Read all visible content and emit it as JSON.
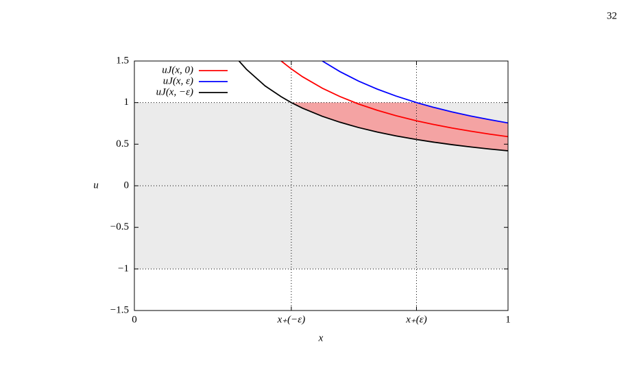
{
  "page_number": "32",
  "chart_data": {
    "type": "line",
    "x_label": "x",
    "y_label": "u",
    "x": [
      0.28,
      0.3,
      0.35,
      0.393,
      0.42,
      0.45,
      0.503,
      0.55,
      0.6,
      0.65,
      0.7,
      0.755,
      0.8,
      0.85,
      0.9,
      0.95,
      1
    ],
    "series": [
      {
        "name": "uJ(x, 0)",
        "color": "#ff0000",
        "values": [
          null,
          null,
          null,
          1.5,
          1.405,
          1.311,
          1.173,
          1.073,
          0.983,
          0.908,
          0.843,
          0.781,
          0.738,
          0.694,
          0.656,
          0.621,
          0.59
        ]
      },
      {
        "name": "uJ(x, ε)",
        "color": "#0000ff",
        "values": [
          null,
          null,
          null,
          null,
          null,
          null,
          1.5,
          1.373,
          1.258,
          1.162,
          1.079,
          1.0,
          0.944,
          0.888,
          0.839,
          0.795,
          0.755
        ]
      },
      {
        "name": "uJ(x, −ε)",
        "color": "#000000",
        "values": [
          1.5,
          1.4,
          1.2,
          1.07,
          1.0,
          0.933,
          0.835,
          0.764,
          0.7,
          0.646,
          0.6,
          0.556,
          0.525,
          0.494,
          0.467,
          0.442,
          0.42
        ]
      }
    ],
    "xlim": [
      0,
      1
    ],
    "ylim": [
      -1.5,
      1.5
    ],
    "xticks": [
      0,
      {
        "value": 0.42,
        "label": "x₊(−ε)"
      },
      {
        "value": 0.755,
        "label": "x₊(ε)"
      },
      1
    ],
    "yticks": [
      {
        "value": -1.5,
        "label": "−1.5"
      },
      {
        "value": -1,
        "label": "−1"
      },
      {
        "value": -0.5,
        "label": "−0.5"
      },
      0,
      0.5,
      1,
      1.5
    ],
    "band_color": "#ebebeb",
    "region_color": "#f4a3a3",
    "legend": "upper left"
  }
}
